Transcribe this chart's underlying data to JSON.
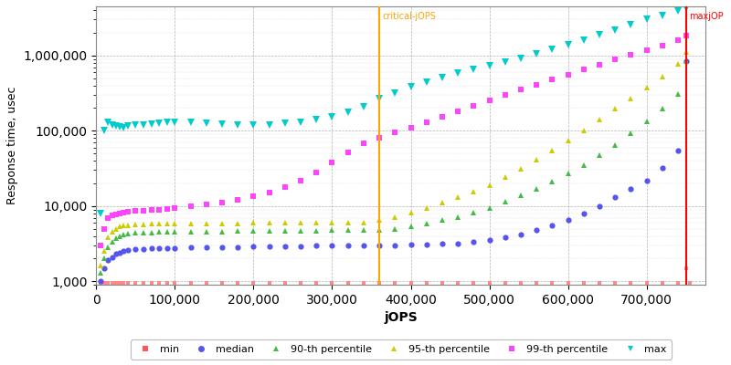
{
  "xlabel": "jOPS",
  "ylabel": "Response time, usec",
  "critical_jops": 360000,
  "max_jops": 750000,
  "critical_label": "critical-jOPS",
  "max_label": "maxjOP",
  "xlim": [
    0,
    775000
  ],
  "ylim": [
    900,
    4500000
  ],
  "legend_labels": [
    "min",
    "median",
    "90-th percentile",
    "95-th percentile",
    "99-th percentile",
    "max"
  ],
  "legend_colors": [
    "#ff5555",
    "#5555ee",
    "#44bb44",
    "#cccc00",
    "#ff44ff",
    "#00cccc"
  ],
  "legend_markers": [
    "s",
    "o",
    "^",
    "^",
    "s",
    "v"
  ],
  "series": {
    "min": {
      "color": "#ff8888",
      "marker": "s",
      "markersize": 2.5,
      "x": [
        5000,
        10000,
        15000,
        20000,
        25000,
        30000,
        35000,
        40000,
        50000,
        60000,
        70000,
        80000,
        90000,
        100000,
        120000,
        140000,
        160000,
        180000,
        200000,
        220000,
        240000,
        260000,
        280000,
        300000,
        320000,
        340000,
        360000,
        380000,
        400000,
        420000,
        440000,
        460000,
        480000,
        500000,
        520000,
        540000,
        560000,
        580000,
        600000,
        620000,
        640000,
        660000,
        680000,
        700000,
        720000,
        740000,
        750000,
        755000
      ],
      "y": [
        950,
        950,
        950,
        950,
        950,
        950,
        950,
        950,
        950,
        950,
        950,
        950,
        950,
        950,
        950,
        950,
        950,
        950,
        950,
        950,
        950,
        950,
        950,
        950,
        950,
        950,
        950,
        950,
        950,
        950,
        950,
        950,
        950,
        950,
        950,
        950,
        950,
        950,
        950,
        950,
        950,
        950,
        950,
        950,
        950,
        950,
        1500,
        950
      ]
    },
    "median": {
      "color": "#5555ee",
      "marker": "o",
      "markersize": 4.5,
      "x": [
        5000,
        10000,
        15000,
        20000,
        25000,
        30000,
        35000,
        40000,
        50000,
        60000,
        70000,
        80000,
        90000,
        100000,
        120000,
        140000,
        160000,
        180000,
        200000,
        220000,
        240000,
        260000,
        280000,
        300000,
        320000,
        340000,
        360000,
        380000,
        400000,
        420000,
        440000,
        460000,
        480000,
        500000,
        520000,
        540000,
        560000,
        580000,
        600000,
        620000,
        640000,
        660000,
        680000,
        700000,
        720000,
        740000,
        750000
      ],
      "y": [
        1000,
        1500,
        1900,
        2100,
        2300,
        2400,
        2500,
        2600,
        2650,
        2700,
        2720,
        2740,
        2760,
        2780,
        2800,
        2820,
        2840,
        2860,
        2880,
        2900,
        2920,
        2940,
        2950,
        2960,
        2970,
        2975,
        2980,
        3000,
        3050,
        3100,
        3150,
        3200,
        3300,
        3500,
        3800,
        4200,
        4800,
        5500,
        6500,
        8000,
        10000,
        13000,
        17000,
        22000,
        32000,
        55000,
        850000
      ]
    },
    "p90": {
      "color": "#44bb44",
      "marker": "^",
      "markersize": 5,
      "x": [
        5000,
        10000,
        15000,
        20000,
        25000,
        30000,
        35000,
        40000,
        50000,
        60000,
        70000,
        80000,
        90000,
        100000,
        120000,
        140000,
        160000,
        180000,
        200000,
        220000,
        240000,
        260000,
        280000,
        300000,
        320000,
        340000,
        360000,
        380000,
        400000,
        420000,
        440000,
        460000,
        480000,
        500000,
        520000,
        540000,
        560000,
        580000,
        600000,
        620000,
        640000,
        660000,
        680000,
        700000,
        720000,
        740000,
        750000
      ],
      "y": [
        1300,
        2000,
        2800,
        3300,
        3700,
        4000,
        4200,
        4300,
        4400,
        4450,
        4480,
        4500,
        4520,
        4540,
        4560,
        4580,
        4600,
        4620,
        4640,
        4660,
        4680,
        4700,
        4720,
        4740,
        4760,
        4780,
        4800,
        5000,
        5400,
        5900,
        6500,
        7200,
        8200,
        9500,
        11500,
        14000,
        17000,
        21000,
        27000,
        35000,
        47000,
        65000,
        92000,
        135000,
        195000,
        310000,
        850000
      ]
    },
    "p95": {
      "color": "#cccc00",
      "marker": "^",
      "markersize": 5,
      "x": [
        5000,
        10000,
        15000,
        20000,
        25000,
        30000,
        35000,
        40000,
        50000,
        60000,
        70000,
        80000,
        90000,
        100000,
        120000,
        140000,
        160000,
        180000,
        200000,
        220000,
        240000,
        260000,
        280000,
        300000,
        320000,
        340000,
        360000,
        380000,
        400000,
        420000,
        440000,
        460000,
        480000,
        500000,
        520000,
        540000,
        560000,
        580000,
        600000,
        620000,
        640000,
        660000,
        680000,
        700000,
        720000,
        740000,
        750000
      ],
      "y": [
        1600,
        2500,
        3800,
        4500,
        5000,
        5300,
        5500,
        5600,
        5700,
        5750,
        5780,
        5800,
        5820,
        5840,
        5860,
        5880,
        5900,
        5920,
        5940,
        5960,
        5980,
        6000,
        6020,
        6040,
        6060,
        6080,
        6500,
        7200,
        8200,
        9500,
        11000,
        13000,
        15500,
        19000,
        24000,
        31000,
        41000,
        55000,
        75000,
        100000,
        140000,
        195000,
        265000,
        370000,
        520000,
        780000,
        1100000
      ]
    },
    "p99": {
      "color": "#ff44ff",
      "marker": "s",
      "markersize": 4,
      "x": [
        5000,
        10000,
        15000,
        20000,
        25000,
        30000,
        35000,
        40000,
        50000,
        60000,
        70000,
        80000,
        90000,
        100000,
        120000,
        140000,
        160000,
        180000,
        200000,
        220000,
        240000,
        260000,
        280000,
        300000,
        320000,
        340000,
        360000,
        380000,
        400000,
        420000,
        440000,
        460000,
        480000,
        500000,
        520000,
        540000,
        560000,
        580000,
        600000,
        620000,
        640000,
        660000,
        680000,
        700000,
        720000,
        740000,
        750000
      ],
      "y": [
        3000,
        5000,
        7000,
        7500,
        7800,
        8000,
        8200,
        8400,
        8600,
        8700,
        8800,
        9000,
        9200,
        9500,
        10000,
        10500,
        11000,
        12000,
        13500,
        15000,
        18000,
        22000,
        28000,
        38000,
        52000,
        68000,
        80000,
        95000,
        110000,
        130000,
        155000,
        180000,
        215000,
        255000,
        300000,
        350000,
        410000,
        480000,
        560000,
        650000,
        760000,
        880000,
        1020000,
        1180000,
        1370000,
        1600000,
        1850000
      ]
    },
    "max": {
      "color": "#00cccc",
      "marker": "v",
      "markersize": 6,
      "x": [
        5000,
        10000,
        15000,
        20000,
        25000,
        30000,
        35000,
        40000,
        50000,
        60000,
        70000,
        80000,
        90000,
        100000,
        120000,
        140000,
        160000,
        180000,
        200000,
        220000,
        240000,
        260000,
        280000,
        300000,
        320000,
        340000,
        360000,
        380000,
        400000,
        420000,
        440000,
        460000,
        480000,
        500000,
        520000,
        540000,
        560000,
        580000,
        600000,
        620000,
        640000,
        660000,
        680000,
        700000,
        720000,
        740000,
        750000
      ],
      "y": [
        8000,
        100000,
        130000,
        120000,
        115000,
        112000,
        110000,
        115000,
        118000,
        120000,
        122000,
        125000,
        128000,
        130000,
        128000,
        125000,
        122000,
        120000,
        118000,
        120000,
        125000,
        130000,
        140000,
        155000,
        175000,
        210000,
        270000,
        320000,
        380000,
        440000,
        510000,
        580000,
        650000,
        730000,
        820000,
        920000,
        1050000,
        1200000,
        1400000,
        1600000,
        1900000,
        2200000,
        2600000,
        3000000,
        3400000,
        3900000,
        4200000
      ]
    }
  }
}
